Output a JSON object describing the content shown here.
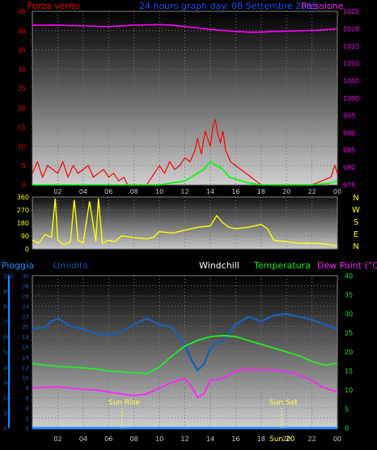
{
  "header": {
    "left_title": "Forza vento",
    "center_title": "24 hours graph day: 08 Settembre 2015",
    "right_title": "Pressione"
  },
  "panel2_right_labels": [
    "N",
    "W",
    "S",
    "E",
    "N"
  ],
  "panel3_legend": {
    "rain": "Pioggia",
    "humidity": "Umidita",
    "windchill": "Windchill",
    "temperature": "Temperatura",
    "dewpoint": "Dew Point (°C)"
  },
  "annotations": {
    "sunrise": "Sun Rise",
    "sunset": "Sun Set",
    "bottom_label": "Sun 20"
  },
  "colors": {
    "wind": "#ff0000",
    "gust": "#00ff00",
    "pressure": "#ff00ff",
    "direction": "#ffff00",
    "rain": "#1e90ff",
    "humidity": "#1a5fb4",
    "temperature": "#22ee22",
    "dewpoint": "#ff22ff",
    "annotation": "#ffff44"
  },
  "chart_data": [
    {
      "type": "line",
      "name": "wind-pressure",
      "x_ticks": [
        "02",
        "04",
        "06",
        "08",
        "10",
        "12",
        "14",
        "16",
        "18",
        "20",
        "22",
        "00"
      ],
      "xlim": [
        0,
        24
      ],
      "y_left_ticks": [
        0,
        5,
        10,
        15,
        20,
        25,
        30,
        35,
        40,
        45
      ],
      "ylim_left": [
        0,
        45
      ],
      "y_right_ticks": [
        975,
        980,
        985,
        990,
        995,
        1000,
        1005,
        1010,
        1015,
        1020,
        1025
      ],
      "ylim_right": [
        975,
        1025
      ],
      "series": [
        {
          "role": "wind",
          "x": [
            0,
            0.4,
            0.8,
            1.2,
            1.6,
            2.0,
            2.4,
            2.8,
            3.2,
            3.6,
            4.0,
            4.4,
            4.8,
            5.2,
            5.6,
            6.0,
            6.4,
            6.8,
            7.2,
            7.5,
            8,
            9,
            10.0,
            10.4,
            10.8,
            11.2,
            11.6,
            12.0,
            12.4,
            12.8,
            13.0,
            13.3,
            13.6,
            14.0,
            14.2,
            14.4,
            14.6,
            14.8,
            15.0,
            15.2,
            15.6,
            16.0,
            16.4,
            16.8,
            17.2,
            17.6,
            18,
            20,
            22,
            23.5,
            23.8,
            24
          ],
          "values": [
            3,
            6,
            2,
            5,
            4,
            3,
            6,
            2,
            5,
            3,
            4,
            5,
            2,
            3,
            4,
            2,
            3,
            1,
            2,
            0,
            0,
            0,
            5,
            3,
            6,
            4,
            5,
            7,
            6,
            9,
            12,
            8,
            14,
            10,
            15,
            17,
            13,
            11,
            14,
            9,
            6,
            5,
            4,
            3,
            2,
            1,
            0,
            0,
            0,
            2,
            5,
            3
          ]
        },
        {
          "role": "gust",
          "x": [
            0,
            2,
            4,
            6,
            8,
            10,
            11,
            12,
            12.5,
            13,
            13.5,
            14,
            14.5,
            15,
            15.5,
            16,
            16.5,
            17,
            18,
            20,
            22,
            23.5,
            24
          ],
          "values": [
            0,
            0,
            0,
            0,
            0,
            0,
            0.5,
            1,
            2,
            3,
            4,
            6,
            5,
            4,
            2,
            1.5,
            1,
            0.5,
            0,
            0,
            0,
            0.5,
            1
          ]
        },
        {
          "role": "pressure",
          "x": [
            0,
            2,
            4,
            6,
            8,
            10,
            11,
            12,
            13,
            14,
            15,
            16,
            17,
            18,
            19,
            20,
            21,
            22,
            23,
            24
          ],
          "values": [
            1021,
            1021,
            1020.8,
            1020.6,
            1021,
            1021.2,
            1021,
            1020.6,
            1020.2,
            1019.8,
            1019.5,
            1019.2,
            1019,
            1019,
            1019.2,
            1019.3,
            1019.4,
            1019.5,
            1019.7,
            1020
          ]
        }
      ]
    },
    {
      "type": "scatter",
      "name": "wind-direction",
      "x_ticks": [
        "02",
        "04",
        "06",
        "08",
        "10",
        "12",
        "14",
        "16",
        "18",
        "20",
        "22",
        "00"
      ],
      "xlim": [
        0,
        24
      ],
      "y_ticks": [
        0,
        90,
        180,
        270,
        360
      ],
      "ylim": [
        0,
        360
      ],
      "values_x": [
        0,
        0.5,
        1.0,
        1.5,
        1.8,
        2.0,
        2.5,
        3.0,
        3.3,
        3.6,
        4.0,
        4.5,
        5.0,
        5.2,
        5.5,
        6.0,
        6.5,
        7.0,
        8.0,
        9.0,
        9.5,
        10.0,
        11.0,
        12.0,
        13.0,
        14.0,
        14.5,
        15.0,
        15.5,
        16.0,
        17.0,
        18.0,
        18.5,
        19.0,
        20.0,
        21.0,
        22.0,
        23.0,
        24.0
      ],
      "values_y": [
        60,
        40,
        100,
        80,
        350,
        60,
        30,
        50,
        340,
        60,
        40,
        330,
        50,
        350,
        40,
        60,
        50,
        90,
        80,
        70,
        80,
        120,
        110,
        130,
        150,
        160,
        230,
        180,
        150,
        140,
        150,
        170,
        140,
        60,
        50,
        40,
        40,
        35,
        20
      ]
    },
    {
      "type": "line",
      "name": "humidity-temperature",
      "x_ticks": [
        "02",
        "04",
        "06",
        "08",
        "10",
        "12",
        "14",
        "16",
        "18",
        "20",
        "22",
        "00"
      ],
      "xlim": [
        0,
        24
      ],
      "y_left_ticks": [
        0,
        2,
        4,
        6,
        8,
        10,
        12,
        14,
        16,
        18,
        20,
        22,
        24,
        26,
        28,
        30
      ],
      "ylim_left": [
        0,
        30
      ],
      "y_humidity_ticks": [
        0,
        10,
        20,
        30,
        40,
        50,
        60,
        70,
        80,
        90,
        100
      ],
      "ylim_humidity": [
        0,
        100
      ],
      "y_right_ticks": [
        0,
        5,
        10,
        15,
        20,
        25,
        30,
        35,
        40
      ],
      "ylim_right": [
        0,
        40
      ],
      "series": [
        {
          "role": "rain",
          "x": [
            0,
            24
          ],
          "values": [
            0,
            0
          ]
        },
        {
          "role": "humidity",
          "x": [
            0,
            1,
            1.5,
            2,
            3,
            4,
            5,
            6,
            7,
            8,
            9,
            10,
            11,
            11.5,
            12,
            12.5,
            13,
            13.5,
            14,
            14.5,
            15,
            16,
            17,
            18,
            19,
            20,
            21,
            22,
            23,
            24
          ],
          "values": [
            65,
            66,
            70,
            72,
            67,
            65,
            62,
            61,
            63,
            68,
            72,
            68,
            66,
            60,
            55,
            45,
            38,
            42,
            52,
            56,
            57,
            68,
            73,
            70,
            74,
            75,
            73,
            71,
            68,
            65
          ]
        },
        {
          "role": "temperature",
          "x": [
            0,
            1,
            2,
            3,
            4,
            5,
            6,
            7,
            8,
            9,
            10,
            11,
            12,
            13,
            14,
            15,
            16,
            17,
            18,
            19,
            20,
            21,
            22,
            23,
            24
          ],
          "values": [
            17,
            16.5,
            16.2,
            16,
            15.8,
            15.5,
            15,
            14.8,
            14.5,
            14.3,
            16,
            19,
            21.5,
            23,
            24,
            24.3,
            24,
            23,
            22,
            21,
            20,
            19,
            17.5,
            16.5,
            17
          ]
        },
        {
          "role": "dewpoint",
          "x": [
            0,
            1,
            2,
            3,
            4,
            5,
            6,
            7,
            8,
            9,
            10,
            11,
            12,
            12.5,
            13,
            13.5,
            14,
            15,
            16,
            17,
            18,
            19,
            20,
            21,
            22,
            23,
            24
          ],
          "values": [
            10.5,
            10.7,
            10.8,
            10.5,
            10.2,
            10,
            9.5,
            9,
            8.5,
            9,
            10.5,
            12,
            13,
            11,
            8,
            9,
            12.5,
            13,
            15,
            15.5,
            15.2,
            15.3,
            14.8,
            14,
            12.5,
            10.5,
            9.5
          ]
        }
      ]
    }
  ]
}
